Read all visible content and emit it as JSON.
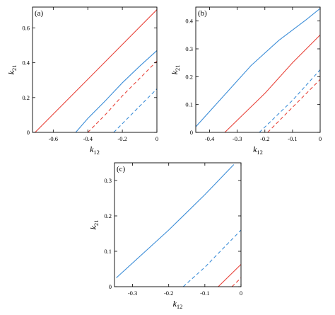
{
  "chart_data": [
    {
      "type": "line",
      "panel_label": "(a)",
      "xlabel": {
        "main": "k",
        "sub": "12"
      },
      "ylabel": {
        "main": "k",
        "sub": "21"
      },
      "xlim": [
        -0.72,
        0
      ],
      "ylim": [
        0,
        0.72
      ],
      "xticks": [
        {
          "value": -0.6,
          "label": "-0.6"
        },
        {
          "value": -0.4,
          "label": "-0.4"
        },
        {
          "value": -0.2,
          "label": "-0.2"
        },
        {
          "value": 0,
          "label": "0"
        }
      ],
      "yticks": [
        {
          "value": 0,
          "label": "0"
        },
        {
          "value": 0.2,
          "label": "0.2"
        },
        {
          "value": 0.4,
          "label": "0.4"
        },
        {
          "value": 0.6,
          "label": "0.6"
        }
      ],
      "grid": false,
      "colors": {
        "red": "#e8453c",
        "blue": "#3d8ed8"
      },
      "series": [
        {
          "color": "red",
          "dash": "solid",
          "points": [
            [
              -0.705,
              0
            ],
            [
              0,
              0.705
            ]
          ]
        },
        {
          "color": "blue",
          "dash": "solid",
          "points": [
            [
              -0.47,
              0
            ],
            [
              -0.4,
              0.08
            ],
            [
              -0.3,
              0.18
            ],
            [
              -0.2,
              0.285
            ],
            [
              -0.1,
              0.38
            ],
            [
              0,
              0.47
            ]
          ]
        },
        {
          "color": "red",
          "dash": "dashed",
          "points": [
            [
              -0.4,
              0
            ],
            [
              -0.3,
              0.1
            ],
            [
              -0.2,
              0.21
            ],
            [
              -0.1,
              0.31
            ],
            [
              0,
              0.41
            ]
          ]
        },
        {
          "color": "blue",
          "dash": "dashed",
          "points": [
            [
              -0.25,
              0
            ],
            [
              -0.2,
              0.05
            ],
            [
              -0.1,
              0.15
            ],
            [
              0,
              0.25
            ]
          ]
        }
      ]
    },
    {
      "type": "line",
      "panel_label": "(b)",
      "xlabel": {
        "main": "k",
        "sub": "12"
      },
      "ylabel": {
        "main": "k",
        "sub": "21"
      },
      "xlim": [
        -0.45,
        0
      ],
      "ylim": [
        0,
        0.45
      ],
      "xticks": [
        {
          "value": -0.4,
          "label": "-0.4"
        },
        {
          "value": -0.3,
          "label": "-0.3"
        },
        {
          "value": -0.2,
          "label": "-0.2"
        },
        {
          "value": -0.1,
          "label": "-0.1"
        },
        {
          "value": 0,
          "label": "0"
        }
      ],
      "yticks": [
        {
          "value": 0,
          "label": "0"
        },
        {
          "value": 0.1,
          "label": "0.1"
        },
        {
          "value": 0.2,
          "label": "0.2"
        },
        {
          "value": 0.3,
          "label": "0.3"
        },
        {
          "value": 0.4,
          "label": "0.4"
        }
      ],
      "grid": false,
      "colors": {
        "red": "#e8453c",
        "blue": "#3d8ed8"
      },
      "series": [
        {
          "color": "blue",
          "dash": "solid",
          "points": [
            [
              -0.45,
              0.02
            ],
            [
              -0.35,
              0.13
            ],
            [
              -0.25,
              0.24
            ],
            [
              -0.15,
              0.33
            ],
            [
              -0.05,
              0.405
            ],
            [
              0,
              0.445
            ]
          ]
        },
        {
          "color": "red",
          "dash": "solid",
          "points": [
            [
              -0.345,
              0
            ],
            [
              -0.2,
              0.14
            ],
            [
              -0.1,
              0.25
            ],
            [
              0,
              0.35
            ]
          ]
        },
        {
          "color": "blue",
          "dash": "dashed",
          "points": [
            [
              -0.22,
              0
            ],
            [
              -0.1,
              0.115
            ],
            [
              0,
              0.225
            ]
          ]
        },
        {
          "color": "red",
          "dash": "dashed",
          "points": [
            [
              -0.19,
              0
            ],
            [
              -0.1,
              0.09
            ],
            [
              0,
              0.19
            ]
          ]
        }
      ]
    },
    {
      "type": "line",
      "panel_label": "(c)",
      "xlabel": {
        "main": "k",
        "sub": "12"
      },
      "ylabel": {
        "main": "k",
        "sub": "21"
      },
      "xlim": [
        -0.35,
        0
      ],
      "ylim": [
        0,
        0.35
      ],
      "xticks": [
        {
          "value": -0.3,
          "label": "-0.3"
        },
        {
          "value": -0.2,
          "label": "-0.2"
        },
        {
          "value": -0.1,
          "label": "-0.1"
        },
        {
          "value": 0,
          "label": "0"
        }
      ],
      "yticks": [
        {
          "value": 0,
          "label": "0"
        },
        {
          "value": 0.1,
          "label": "0.1"
        },
        {
          "value": 0.2,
          "label": "0.2"
        },
        {
          "value": 0.3,
          "label": "0.3"
        }
      ],
      "grid": false,
      "colors": {
        "red": "#e8453c",
        "blue": "#3d8ed8"
      },
      "series": [
        {
          "color": "blue",
          "dash": "solid",
          "points": [
            [
              -0.345,
              0.025
            ],
            [
              -0.2,
              0.16
            ],
            [
              -0.1,
              0.26
            ],
            [
              -0.02,
              0.345
            ]
          ]
        },
        {
          "color": "blue",
          "dash": "dashed",
          "points": [
            [
              -0.16,
              0
            ],
            [
              -0.1,
              0.055
            ],
            [
              0,
              0.16
            ]
          ]
        },
        {
          "color": "red",
          "dash": "solid",
          "points": [
            [
              -0.063,
              0
            ],
            [
              0,
              0.063
            ]
          ]
        },
        {
          "color": "red",
          "dash": "dashed",
          "points": [
            [
              -0.025,
              0
            ],
            [
              0,
              0.025
            ]
          ]
        }
      ]
    }
  ]
}
